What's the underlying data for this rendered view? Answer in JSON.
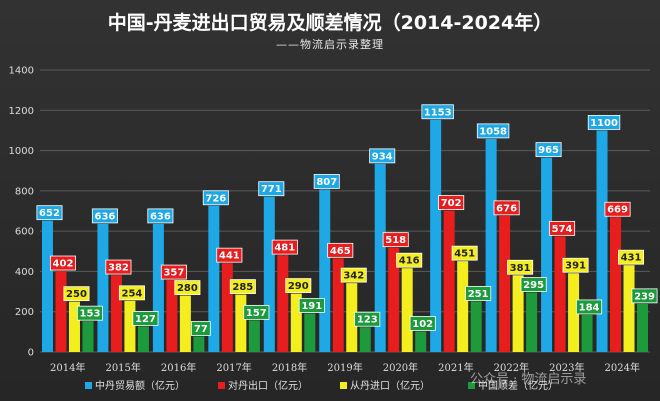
{
  "chart_data": {
    "type": "bar",
    "title": "中国-丹麦进出口贸易及顺差情况（2014-2024年）",
    "subtitle": "——物流启示录整理",
    "categories": [
      "2014年",
      "2015年",
      "2016年",
      "2017年",
      "2018年",
      "2019年",
      "2020年",
      "2021年",
      "2022年",
      "2023年",
      "2024年"
    ],
    "ylim": [
      0,
      1400
    ],
    "yticks": [
      0,
      200,
      400,
      600,
      800,
      1000,
      1200,
      1400
    ],
    "grid": true,
    "legend_position": "bottom",
    "series": [
      {
        "name": "中丹贸易额（亿元）",
        "values": [
          652,
          636,
          636,
          726,
          771,
          807,
          934,
          1153,
          1058,
          965,
          1100
        ],
        "color": "#1ea9e6",
        "label_bg": "#1ea9e6",
        "label_fg": "#ffffff"
      },
      {
        "name": "对丹出口（亿元）",
        "values": [
          402,
          382,
          357,
          441,
          481,
          465,
          518,
          702,
          676,
          574,
          669
        ],
        "color": "#e81d1d",
        "label_bg": "#e81d1d",
        "label_fg": "#ffffff"
      },
      {
        "name": "从丹进口（亿元）",
        "values": [
          250,
          254,
          280,
          285,
          290,
          342,
          416,
          451,
          381,
          391,
          431
        ],
        "color": "#f4ee1f",
        "label_bg": "#f4ee1f",
        "label_fg": "#222222"
      },
      {
        "name": "中国顺差（亿元）",
        "values": [
          153,
          127,
          77,
          157,
          191,
          123,
          102,
          251,
          295,
          184,
          239
        ],
        "color": "#1c9a3c",
        "label_bg": "#1c9a3c",
        "label_fg": "#ffffff"
      }
    ]
  },
  "watermark": "公众号 · 物流启示录"
}
